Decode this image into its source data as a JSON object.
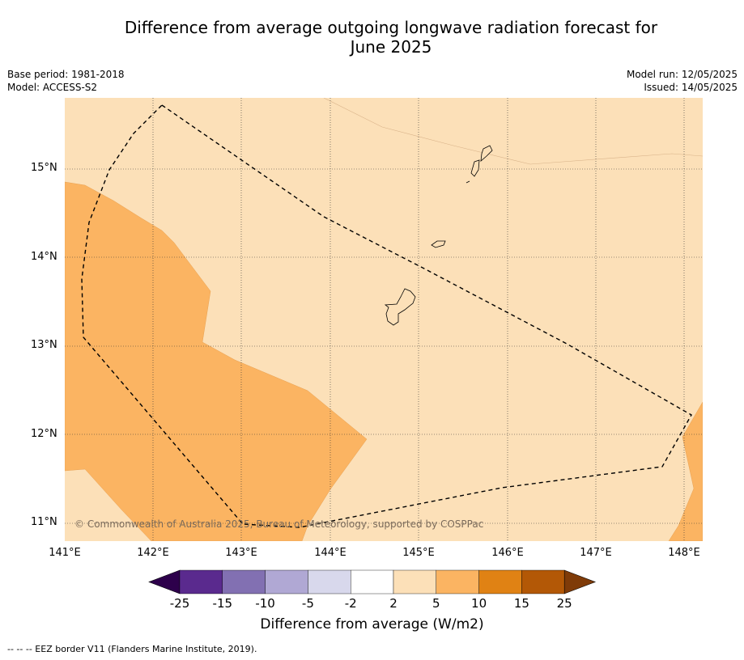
{
  "title_line1": "Difference from average outgoing longwave radiation forecast for",
  "title_line2": "June 2025",
  "meta_left": [
    "Base period: 1981-2018",
    "Model: ACCESS-S2"
  ],
  "meta_right": [
    "Model run: 12/05/2025",
    "Issued: 14/05/2025"
  ],
  "lat_labels": [
    "15°N",
    "14°N",
    "13°N",
    "12°N",
    "11°N"
  ],
  "lon_labels": [
    "141°E",
    "142°E",
    "143°E",
    "144°E",
    "145°E",
    "146°E",
    "147°E",
    "148°E"
  ],
  "copyright": "© Commonwealth of Australia 2025, Bureau of Meteorology, supported by COSPPac",
  "colorbar": {
    "ticks": [
      "-25",
      "-15",
      "-10",
      "-5",
      "-2",
      "2",
      "5",
      "10",
      "15",
      "25"
    ],
    "colors": [
      "#5a2a8e",
      "#8270b2",
      "#b0a8d4",
      "#d8d8ec",
      "#ffffff",
      "#fce0b8",
      "#fbb462",
      "#e08214",
      "#b35806"
    ],
    "under_color": "#2d004b",
    "over_color": "#7f3b08",
    "label": "Difference from average (W/m2)"
  },
  "footnote": "--  --  -- EEZ border V11 (Flanders Marine Institute, 2019)."
}
